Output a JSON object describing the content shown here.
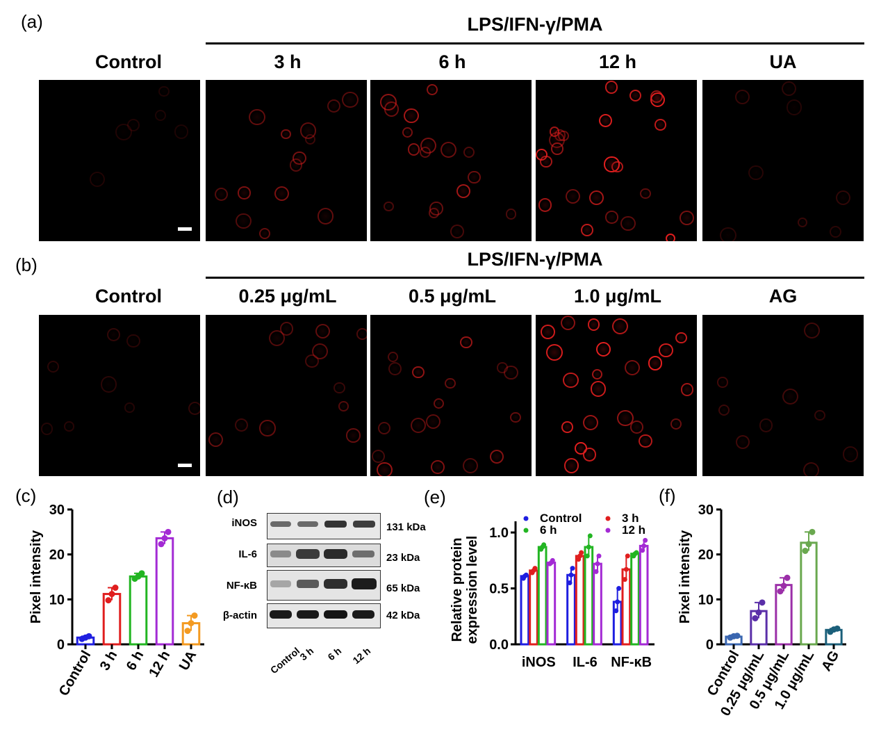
{
  "panel_a": {
    "label": "(a)",
    "group_label": "LPS/IFN-γ/PMA",
    "columns": [
      "Control",
      "3 h",
      "6 h",
      "12 h",
      "UA"
    ],
    "intensity": [
      0.02,
      0.35,
      0.5,
      0.8,
      0.1
    ]
  },
  "panel_b": {
    "label": "(b)",
    "group_label": "LPS/IFN-γ/PMA",
    "columns": [
      "Control",
      "0.25 μg/mL",
      "0.5 μg/mL",
      "1.0 μg/mL",
      "AG"
    ],
    "intensity": [
      0.08,
      0.28,
      0.48,
      0.75,
      0.15
    ]
  },
  "panel_c": {
    "label": "(c)"
  },
  "panel_d": {
    "label": "(d)",
    "proteins": [
      "iNOS",
      "IL-6",
      "NF-κB",
      "β-actin"
    ],
    "sizes": [
      "131 kDa",
      "23 kDa",
      "65 kDa",
      "42 kDa"
    ],
    "lanes": [
      "Control",
      "3 h",
      "6 h",
      "12 h"
    ]
  },
  "panel_e": {
    "label": "(e)"
  },
  "panel_f": {
    "label": "(f)"
  },
  "chart_data": [
    {
      "id": "c",
      "type": "bar",
      "categories": [
        "Control",
        "3 h",
        "6 h",
        "12 h",
        "UA"
      ],
      "values": [
        1.5,
        11.2,
        15.1,
        23.6,
        4.7
      ],
      "points": [
        [
          1.2,
          1.5,
          1.8
        ],
        [
          9.8,
          11.2,
          12.6
        ],
        [
          14.6,
          15.1,
          15.8
        ],
        [
          22.3,
          23.6,
          25.0
        ],
        [
          3.0,
          4.7,
          6.4
        ]
      ],
      "colors": [
        "#1f1fe0",
        "#e01e1e",
        "#22b522",
        "#a32ad4",
        "#f39a21"
      ],
      "ylabel": "Pixel intensity",
      "ylim": [
        0,
        30
      ],
      "yticks": [
        0,
        10,
        20,
        30
      ]
    },
    {
      "id": "e",
      "type": "bar",
      "categories": [
        "iNOS",
        "IL-6",
        "NF-κB"
      ],
      "series": [
        {
          "name": "Control",
          "color": "#1f1fe0",
          "values": [
            0.61,
            0.62,
            0.38
          ],
          "points": [
            [
              0.59,
              0.61,
              0.62
            ],
            [
              0.55,
              0.62,
              0.68
            ],
            [
              0.3,
              0.38,
              0.5
            ]
          ]
        },
        {
          "name": "3 h",
          "color": "#e01e1e",
          "values": [
            0.66,
            0.79,
            0.67
          ],
          "points": [
            [
              0.64,
              0.66,
              0.68
            ],
            [
              0.76,
              0.79,
              0.82
            ],
            [
              0.58,
              0.67,
              0.79
            ]
          ]
        },
        {
          "name": "6 h",
          "color": "#22b522",
          "values": [
            0.87,
            0.87,
            0.81
          ],
          "points": [
            [
              0.85,
              0.87,
              0.89
            ],
            [
              0.79,
              0.87,
              0.97
            ],
            [
              0.79,
              0.81,
              0.82
            ]
          ]
        },
        {
          "name": "12 h",
          "color": "#a32ad4",
          "values": [
            0.73,
            0.72,
            0.88
          ],
          "points": [
            [
              0.72,
              0.73,
              0.75
            ],
            [
              0.65,
              0.72,
              0.79
            ],
            [
              0.84,
              0.88,
              0.93
            ]
          ]
        }
      ],
      "ylabel": "Relative protein expression level",
      "ylim": [
        0,
        1.1
      ],
      "yticks": [
        0.0,
        0.5,
        1.0
      ],
      "legend": "top"
    },
    {
      "id": "f",
      "type": "bar",
      "categories": [
        "Control",
        "0.25 μg/mL",
        "0.5 μg/mL",
        "1.0 μg/mL",
        "AG"
      ],
      "values": [
        1.7,
        7.4,
        13.2,
        22.6,
        3.2
      ],
      "points": [
        [
          1.5,
          1.8,
          1.9
        ],
        [
          5.8,
          7.1,
          9.3
        ],
        [
          11.8,
          13.0,
          14.8
        ],
        [
          20.8,
          22.3,
          25.0
        ],
        [
          2.8,
          3.3,
          3.5
        ]
      ],
      "colors": [
        "#3a66b0",
        "#5a2fa8",
        "#9b2fa8",
        "#6aa84f",
        "#1b5f7a"
      ],
      "ylabel": "Pixel intensity",
      "ylim": [
        0,
        30
      ],
      "yticks": [
        0,
        10,
        20,
        30
      ]
    }
  ]
}
